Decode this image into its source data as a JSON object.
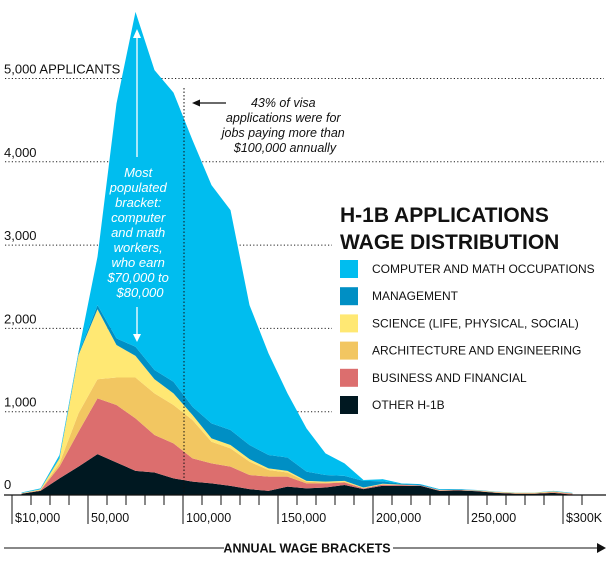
{
  "chart_data": {
    "type": "area",
    "stacked": true,
    "title": "H-1B APPLICATIONS WAGE DISTRIBUTION",
    "title_lines": [
      "H-1B APPLICATIONS",
      "WAGE DISTRIBUTION"
    ],
    "xlabel": "ANNUAL WAGE BRACKETS",
    "ylabel": "",
    "ylim": [
      0,
      5900
    ],
    "xlim": [
      10000,
      310000
    ],
    "grid": true,
    "legend_position": "right",
    "y_ticks": [
      {
        "value": 0,
        "label": "0"
      },
      {
        "value": 1000,
        "label": "1,000"
      },
      {
        "value": 2000,
        "label": "2,000"
      },
      {
        "value": 3000,
        "label": "3,000"
      },
      {
        "value": 4000,
        "label": "4,000"
      },
      {
        "value": 5000,
        "label": "5,000 APPLICANTS"
      }
    ],
    "x_ticks": [
      {
        "value": 10000,
        "label": "$10,000"
      },
      {
        "value": 50000,
        "label": "50,000"
      },
      {
        "value": 100000,
        "label": "100,000"
      },
      {
        "value": 150000,
        "label": "150,000"
      },
      {
        "value": 200000,
        "label": "200,000"
      },
      {
        "value": 250000,
        "label": "250,000"
      },
      {
        "value": 300000,
        "label": "$300K"
      }
    ],
    "x": [
      15000,
      25000,
      35000,
      45000,
      55000,
      65000,
      75000,
      85000,
      95000,
      105000,
      115000,
      125000,
      135000,
      145000,
      155000,
      165000,
      175000,
      185000,
      195000,
      205000,
      215000,
      225000,
      235000,
      245000,
      255000,
      265000,
      275000,
      285000,
      295000,
      305000
    ],
    "series": [
      {
        "name": "OTHER H-1B",
        "color": "#001821",
        "values": [
          15,
          50,
          200,
          340,
          490,
          390,
          290,
          270,
          200,
          160,
          140,
          110,
          70,
          50,
          100,
          80,
          90,
          120,
          70,
          110,
          110,
          110,
          50,
          55,
          45,
          25,
          15,
          15,
          25,
          5
        ]
      },
      {
        "name": "BUSINESS AND FINANCIAL",
        "color": "#DC6E6E",
        "values": [
          3,
          5,
          140,
          420,
          670,
          690,
          630,
          450,
          420,
          280,
          240,
          230,
          170,
          170,
          120,
          60,
          50,
          30,
          10,
          15,
          10,
          5,
          5,
          5,
          5,
          5,
          5,
          5,
          8,
          10
        ]
      },
      {
        "name": "ARCHITECTURE AND ENGINEERING",
        "color": "#F2C661",
        "values": [
          2,
          5,
          40,
          220,
          230,
          330,
          490,
          500,
          460,
          460,
          260,
          220,
          160,
          80,
          50,
          20,
          10,
          10,
          5,
          5,
          5,
          0,
          3,
          2,
          3,
          5,
          5,
          5,
          7,
          3
        ]
      },
      {
        "name": "SCIENCE (LIFE, PHYSICAL, SOCIAL)",
        "color": "#FFE873",
        "values": [
          3,
          8,
          60,
          700,
          840,
          390,
          260,
          170,
          140,
          60,
          40,
          40,
          30,
          20,
          20,
          10,
          10,
          10,
          5,
          5,
          0,
          0,
          2,
          0,
          2,
          3,
          3,
          3,
          3,
          2
        ]
      },
      {
        "name": "MANAGEMENT",
        "color": "#008FC4",
        "values": [
          2,
          2,
          10,
          20,
          50,
          80,
          110,
          110,
          140,
          100,
          180,
          180,
          170,
          160,
          160,
          110,
          80,
          60,
          80,
          30,
          10,
          10,
          5,
          5,
          3,
          1,
          1,
          1,
          3,
          2
        ]
      },
      {
        "name": "COMPUTER AND MATH OCCUPATIONS",
        "color": "#00BDEF",
        "values": [
          5,
          10,
          30,
          20,
          580,
          2820,
          4020,
          3600,
          3470,
          3200,
          2860,
          2640,
          1680,
          1220,
          770,
          520,
          260,
          150,
          10,
          25,
          5,
          5,
          5,
          3,
          2,
          1,
          1,
          1,
          4,
          3
        ]
      }
    ],
    "annotations": {
      "peak_note": [
        "Most",
        "populated",
        "bracket:",
        "computer",
        "and math",
        "workers,",
        "who earn",
        "$70,000 to",
        "$80,000"
      ],
      "threshold_note": [
        "43% of visa",
        "applications were for",
        "jobs paying more than",
        "$100,000 annually"
      ],
      "threshold_value": 100000
    }
  }
}
